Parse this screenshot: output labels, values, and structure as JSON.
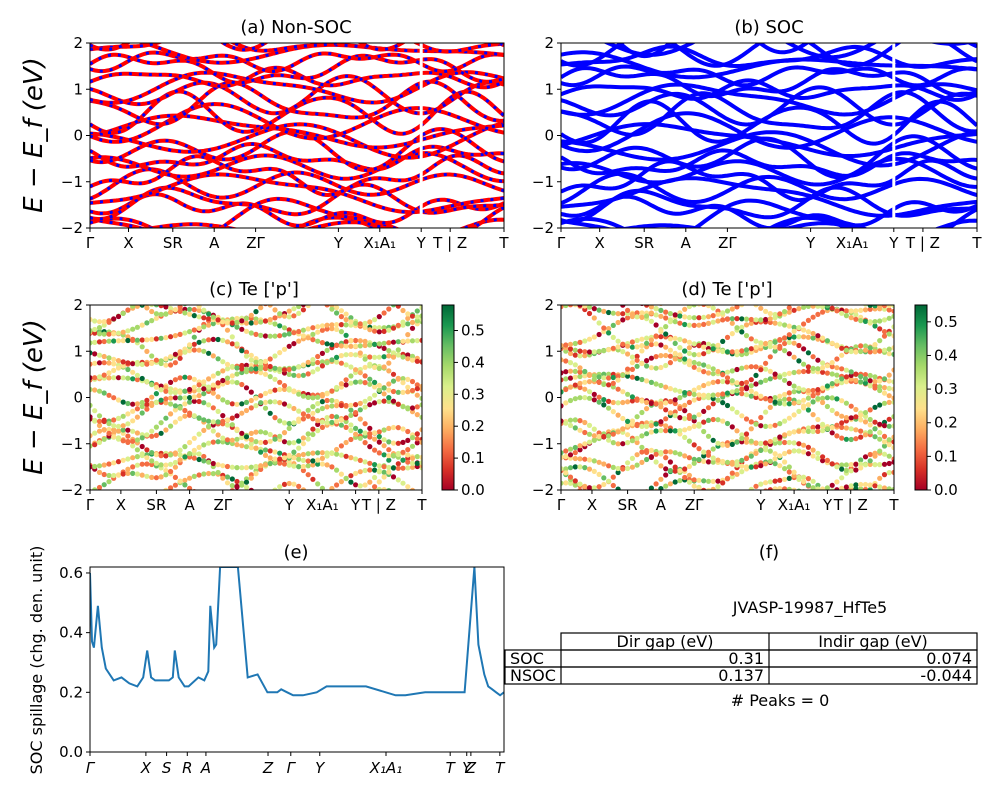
{
  "panels": {
    "a": {
      "title": "(a) Non-SOC"
    },
    "b": {
      "title": "(b) SOC"
    },
    "c": {
      "title": "(c)  Te ['p']"
    },
    "d": {
      "title": "(d) Te ['p']"
    },
    "e": {
      "title": "(e)"
    },
    "f": {
      "title": "(f)"
    }
  },
  "band_axis": {
    "ylabel": "E − E_f (eV)",
    "ylim": [
      -2,
      2
    ],
    "yticks": [
      "−2",
      "−1",
      "0",
      "1",
      "2"
    ],
    "kpath_labels": [
      "Γ",
      "X",
      "SR",
      "A",
      "ZΓ",
      "Y",
      "X₁A₁",
      "Y",
      "T | Z",
      "T"
    ]
  },
  "colorbar_c": {
    "ticks": [
      "0.0",
      "0.1",
      "0.2",
      "0.3",
      "0.4",
      "0.5"
    ],
    "vmax": 0.58
  },
  "colorbar_d": {
    "ticks": [
      "0.0",
      "0.1",
      "0.2",
      "0.3",
      "0.4",
      "0.5"
    ],
    "vmax": 0.55
  },
  "colors": {
    "nonsoc_line": "#ff0000",
    "nonsoc_dash": "#0000ff",
    "soc_line": "#0000ff",
    "spillage_line": "#1f77b4"
  },
  "spillage_axis": {
    "ylabel": "SOC spillage (chg. den. unit)",
    "yticks": [
      "0.0",
      "0.2",
      "0.4",
      "0.6"
    ],
    "ylim": [
      0,
      0.62
    ],
    "xticks": [
      "Γ",
      "X",
      "S",
      "R",
      "A",
      "Z",
      "Γ",
      "Y",
      "X₁A₁",
      "T",
      "Y",
      "Z",
      "T"
    ]
  },
  "table": {
    "material": "JVASP-19987_HfTe5",
    "headers": [
      "",
      "Dir gap (eV)",
      "Indir gap (eV)"
    ],
    "rows": [
      {
        "label": "SOC",
        "dir": "0.31",
        "indir": "0.074"
      },
      {
        "label": "NSOC",
        "dir": "0.137",
        "indir": "-0.044"
      }
    ],
    "peaks": "# Peaks = 0"
  },
  "chart_data": [
    {
      "type": "line",
      "title": "(a) Non-SOC",
      "ylabel": "E − E_f (eV)",
      "ylim": [
        -2,
        2
      ],
      "note_series": "Non-SOC bands"
    },
    {
      "type": "line",
      "title": "(b) SOC",
      "ylim": [
        -2,
        2
      ]
    },
    {
      "type": "scatter",
      "title": "(c)  Te ['p']",
      "ylabel": "E − E_f (eV)",
      "ylim": [
        -2,
        2
      ],
      "colorbar": [
        0,
        0.58
      ]
    },
    {
      "type": "scatter",
      "title": "(d) Te ['p']",
      "ylim": [
        -2,
        2
      ],
      "colorbar": [
        0,
        0.55
      ]
    },
    {
      "type": "line",
      "title": "(e)",
      "ylabel": "SOC spillage (chg. den. unit)",
      "ylim": [
        0,
        0.62
      ],
      "x": [
        0,
        0.01,
        0.02,
        0.04,
        0.06,
        0.08,
        0.12,
        0.16,
        0.2,
        0.24,
        0.27,
        0.29,
        0.31,
        0.33,
        0.34,
        0.37,
        0.4,
        0.42,
        0.43,
        0.45,
        0.48,
        0.5,
        0.55,
        0.58,
        0.6,
        0.61,
        0.63,
        0.64,
        0.66,
        0.7,
        0.75,
        0.8,
        0.85,
        0.9,
        0.93,
        0.95,
        0.97,
        1.0,
        1.03,
        1.05,
        1.08,
        1.15,
        1.2,
        1.3,
        1.4,
        1.5,
        1.55,
        1.6,
        1.7,
        1.8,
        1.9,
        1.95,
        1.97,
        2.0,
        2.02,
        2.04,
        2.06,
        2.08,
        2.1
      ],
      "y": [
        0.6,
        0.37,
        0.35,
        0.49,
        0.35,
        0.28,
        0.24,
        0.25,
        0.23,
        0.22,
        0.25,
        0.34,
        0.25,
        0.24,
        0.24,
        0.24,
        0.24,
        0.25,
        0.34,
        0.25,
        0.22,
        0.22,
        0.25,
        0.24,
        0.27,
        0.49,
        0.35,
        0.36,
        0.62,
        0.62,
        0.62,
        0.25,
        0.26,
        0.2,
        0.2,
        0.2,
        0.21,
        0.2,
        0.19,
        0.19,
        0.19,
        0.2,
        0.22,
        0.22,
        0.22,
        0.2,
        0.19,
        0.19,
        0.2,
        0.2,
        0.2,
        0.62,
        0.36,
        0.26,
        0.22,
        0.21,
        0.2,
        0.19,
        0.2
      ]
    }
  ]
}
